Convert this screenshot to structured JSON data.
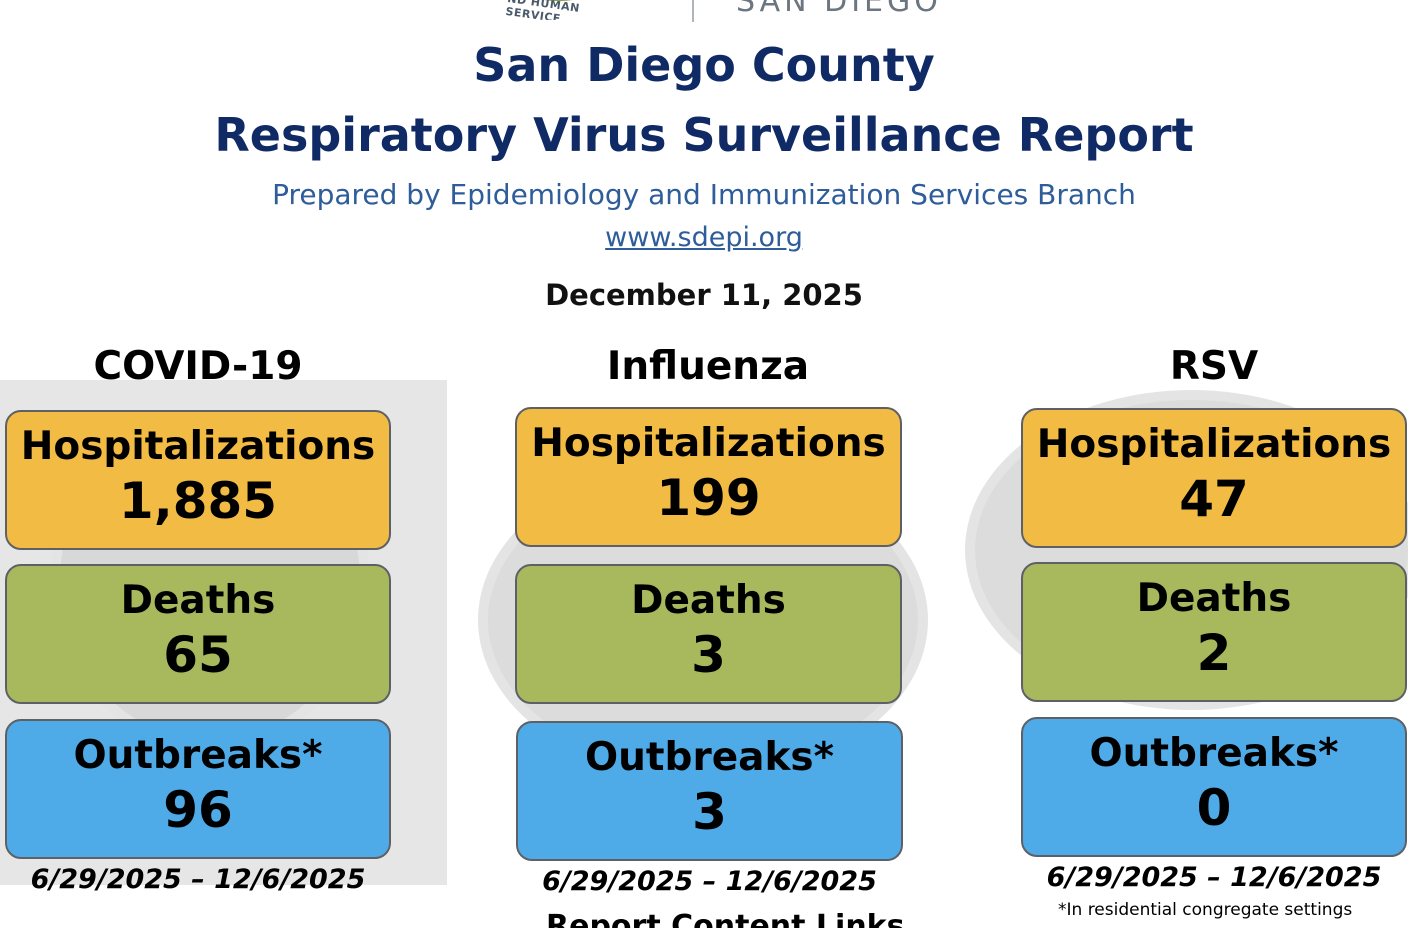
{
  "header": {
    "logo_arc_text": "ND HUMAN SERVICE",
    "logo_name": "SAN DIEGO",
    "title_line1": "San Diego County",
    "title_line2": "Respiratory Virus Surveillance Report",
    "subtitle": "Prepared by Epidemiology and Immunization Services Branch",
    "website": "www.sdepi.org",
    "date": "December 11, 2025"
  },
  "columns": [
    {
      "title": "COVID-19",
      "hosp_label": "Hospitalizations",
      "hosp_value": "1,885",
      "deaths_label": "Deaths",
      "deaths_value": "65",
      "outbreaks_label": "Outbreaks*",
      "outbreaks_value": "96",
      "period": "6/29/2025 – 12/6/2025"
    },
    {
      "title": "Influenza",
      "hosp_label": "Hospitalizations",
      "hosp_value": "199",
      "deaths_label": "Deaths",
      "deaths_value": "3",
      "outbreaks_label": "Outbreaks*",
      "outbreaks_value": "3",
      "period": "6/29/2025 – 12/6/2025"
    },
    {
      "title": "RSV",
      "hosp_label": "Hospitalizations",
      "hosp_value": "47",
      "deaths_label": "Deaths",
      "deaths_value": "2",
      "outbreaks_label": "Outbreaks*",
      "outbreaks_value": "0",
      "period": "6/29/2025 – 12/6/2025"
    }
  ],
  "footnote": "*In residential congregate settings",
  "cutoff_heading": "Report Content Links",
  "colors": {
    "title": "#0f2a64",
    "subtitle": "#2e5d9a",
    "hospitalizations": "#f2bb44",
    "deaths": "#a8b85c",
    "outbreaks": "#4fabe8"
  }
}
